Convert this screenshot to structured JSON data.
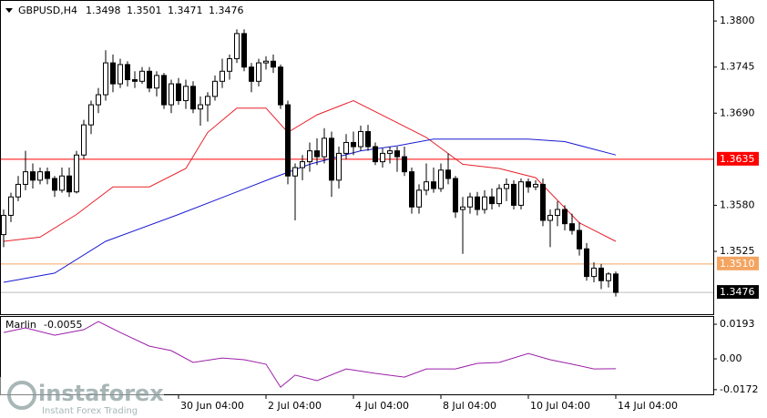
{
  "chart_data": {
    "type": "candlestick",
    "symbol": "GBPUSD,H4",
    "open": [
      1.3545,
      1.3568,
      1.359,
      1.3605,
      1.362,
      1.361,
      1.362,
      1.3612,
      1.3598,
      1.3615,
      1.3596,
      1.364,
      1.3676,
      1.37,
      1.3712,
      1.375,
      1.3725,
      1.3748,
      1.373,
      1.3728,
      1.374,
      1.372,
      1.3735,
      1.37,
      1.3725,
      1.3705,
      1.3722,
      1.3695,
      1.37,
      1.371,
      1.3728,
      1.374,
      1.3755,
      1.3785,
      1.3745,
      1.3728,
      1.375,
      1.3752,
      1.3745,
      1.37,
      1.3615,
      1.3625,
      1.3632,
      1.3645,
      1.3638,
      1.366,
      1.361,
      1.3642,
      1.3655,
      1.365,
      1.3668,
      1.365,
      1.3632,
      1.3642,
      1.3645,
      1.3638,
      1.362,
      1.3578,
      1.3598,
      1.3608,
      1.36,
      1.3622,
      1.3612,
      1.3575,
      1.3578,
      1.359,
      1.3575,
      1.359,
      1.3582,
      1.36,
      1.3605,
      1.358,
      1.3608,
      1.3602,
      1.3605,
      1.3562,
      1.3568,
      1.3575,
      1.3558,
      1.355,
      1.3528,
      1.3495,
      1.3505,
      1.349,
      1.3498
    ],
    "high": [
      1.3575,
      1.3595,
      1.3615,
      1.3645,
      1.363,
      1.3625,
      1.3625,
      1.3615,
      1.3625,
      1.3625,
      1.3645,
      1.3682,
      1.3705,
      1.372,
      1.3765,
      1.376,
      1.3755,
      1.3752,
      1.374,
      1.3745,
      1.3745,
      1.374,
      1.3738,
      1.373,
      1.3732,
      1.373,
      1.3728,
      1.371,
      1.3715,
      1.3735,
      1.3755,
      1.376,
      1.379,
      1.379,
      1.375,
      1.3755,
      1.3758,
      1.376,
      1.3748,
      1.3705,
      1.363,
      1.364,
      1.3655,
      1.366,
      1.3672,
      1.3668,
      1.365,
      1.3665,
      1.3668,
      1.3675,
      1.3676,
      1.3655,
      1.3648,
      1.365,
      1.365,
      1.365,
      1.3625,
      1.3605,
      1.363,
      1.3625,
      1.363,
      1.3642,
      1.3615,
      1.359,
      1.3595,
      1.3596,
      1.3598,
      1.36,
      1.3605,
      1.3612,
      1.361,
      1.3612,
      1.3612,
      1.361,
      1.3612,
      1.3575,
      1.3585,
      1.358,
      1.357,
      1.356,
      1.3535,
      1.3512,
      1.351,
      1.35,
      1.3501
    ],
    "low": [
      1.353,
      1.356,
      1.3585,
      1.3598,
      1.36,
      1.3605,
      1.3605,
      1.359,
      1.3595,
      1.359,
      1.3594,
      1.3635,
      1.3665,
      1.369,
      1.3705,
      1.3715,
      1.372,
      1.3722,
      1.372,
      1.3725,
      1.3715,
      1.371,
      1.3695,
      1.369,
      1.37,
      1.3695,
      1.369,
      1.3675,
      1.368,
      1.3705,
      1.372,
      1.373,
      1.375,
      1.374,
      1.3715,
      1.3722,
      1.3742,
      1.3738,
      1.3695,
      1.3605,
      1.3562,
      1.361,
      1.362,
      1.3628,
      1.363,
      1.359,
      1.36,
      1.3635,
      1.364,
      1.3645,
      1.3645,
      1.3628,
      1.3625,
      1.363,
      1.362,
      1.3615,
      1.357,
      1.357,
      1.3592,
      1.3595,
      1.3596,
      1.3605,
      1.3565,
      1.3522,
      1.357,
      1.3568,
      1.357,
      1.3575,
      1.3578,
      1.3585,
      1.3575,
      1.3575,
      1.3595,
      1.3598,
      1.3555,
      1.353,
      1.3555,
      1.355,
      1.3545,
      1.352,
      1.349,
      1.3488,
      1.348,
      1.3482,
      1.3471
    ],
    "close": [
      1.3568,
      1.359,
      1.3605,
      1.362,
      1.361,
      1.362,
      1.3612,
      1.3598,
      1.3615,
      1.3596,
      1.364,
      1.3676,
      1.37,
      1.3712,
      1.375,
      1.3725,
      1.3748,
      1.373,
      1.3728,
      1.374,
      1.372,
      1.3735,
      1.37,
      1.3725,
      1.3705,
      1.3722,
      1.3695,
      1.37,
      1.371,
      1.3728,
      1.374,
      1.3755,
      1.3785,
      1.3745,
      1.3728,
      1.375,
      1.3752,
      1.3745,
      1.37,
      1.3615,
      1.3625,
      1.3632,
      1.3645,
      1.3638,
      1.366,
      1.361,
      1.3642,
      1.3655,
      1.365,
      1.3668,
      1.365,
      1.3632,
      1.3642,
      1.3645,
      1.3638,
      1.362,
      1.3578,
      1.3598,
      1.3608,
      1.36,
      1.3622,
      1.3612,
      1.3572,
      1.3578,
      1.359,
      1.3575,
      1.359,
      1.3582,
      1.36,
      1.3605,
      1.358,
      1.3608,
      1.3602,
      1.3605,
      1.3562,
      1.3568,
      1.3575,
      1.3558,
      1.355,
      1.3528,
      1.3495,
      1.3505,
      1.349,
      1.3498,
      1.3476
    ],
    "up_color": "#ffffff",
    "down_color": "#000000",
    "edge_color": "#000000",
    "xlim": [
      -0.5,
      97.375
    ],
    "xticks": [
      {
        "value": 24,
        "label": "30 Jun 04:00"
      },
      {
        "value": 36,
        "label": "2 Jul 04:00"
      },
      {
        "value": 48,
        "label": "4 Jul 04:00"
      },
      {
        "value": 60,
        "label": "8 Jul 04:00"
      },
      {
        "value": 72,
        "label": "10 Jul 04:00"
      },
      {
        "value": 84,
        "label": "14 Jul 04:00"
      }
    ],
    "ylim": [
      1.345,
      1.3824
    ],
    "yticks": [
      {
        "value": 1.38,
        "label": "1.3800"
      },
      1.3745,
      {
        "value": 1.369,
        "label": "1.3690"
      },
      {
        "value": 1.358,
        "label": "1.3580"
      },
      1.3525
    ],
    "hlines": [
      {
        "value": 1.3635,
        "label": "1.3635",
        "color": "#ff0000"
      },
      {
        "value": 1.351,
        "label": "1.3510",
        "color": "#f4a460"
      }
    ],
    "last_color": "#000000",
    "series": [
      {
        "color": "#e8202a",
        "x": [
          0,
          5,
          10,
          15,
          20,
          25,
          28,
          32,
          36,
          39,
          43,
          48,
          53,
          58,
          63,
          68,
          73,
          79,
          84
        ],
        "values": [
          1.3537,
          1.3542,
          1.3569,
          1.3602,
          1.3602,
          1.3624,
          1.3667,
          1.3696,
          1.3696,
          1.3667,
          1.3688,
          1.3705,
          1.3683,
          1.3661,
          1.3629,
          1.3624,
          1.3613,
          1.3559,
          1.3537
        ]
      },
      {
        "color": "#1a1ad0",
        "x": [
          0,
          7,
          14,
          24,
          32,
          37,
          42,
          49,
          54,
          59,
          67,
          72,
          77,
          84
        ],
        "values": [
          1.3488,
          1.3499,
          1.3537,
          1.3569,
          1.3596,
          1.3613,
          1.3629,
          1.3645,
          1.3651,
          1.3659,
          1.3659,
          1.3659,
          1.3656,
          1.364
        ]
      }
    ],
    "indicator": {
      "name": "Marlin",
      "color": "#9b1fa8",
      "ylim": [
        -0.0198,
        0.0234
      ],
      "yticks": [
        0.0193,
        {
          "value": 0,
          "label": "0.00"
        },
        -0.0172
      ],
      "x": [
        0,
        3,
        7,
        11,
        13,
        16,
        20,
        23,
        26,
        30,
        33,
        36,
        38,
        40,
        43,
        47,
        51,
        55,
        58,
        62,
        65,
        68,
        72,
        75,
        78,
        81,
        84
      ],
      "values": [
        0.0147,
        0.0173,
        0.0132,
        0.0163,
        0.0208,
        0.0147,
        0.0071,
        0.0046,
        -0.002,
        0.0005,
        -0.0005,
        -0.003,
        -0.0158,
        -0.0091,
        -0.0122,
        -0.0056,
        -0.0081,
        -0.0102,
        -0.0056,
        -0.0056,
        -0.0025,
        -0.002,
        0.003,
        -0.0005,
        -0.003,
        -0.0056,
        -0.0055
      ]
    },
    "watermark": {
      "brand": "instaforex",
      "tagline": "Instant Forex Trading"
    }
  }
}
